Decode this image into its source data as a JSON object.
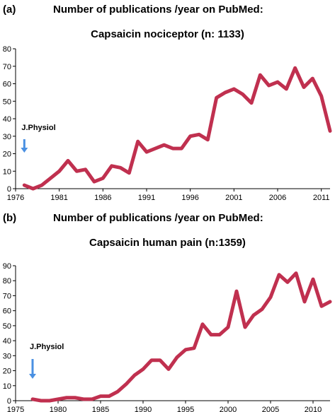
{
  "panels": [
    {
      "label": "(a)",
      "heading": "Number of publications /year on PubMed:",
      "title": "Capsaicin nociceptor (n: 1133)"
    },
    {
      "label": "(b)",
      "heading": "Number of publications /year on PubMed:",
      "title": "Capsaicin human pain (n:1359)"
    }
  ],
  "chart_data": [
    {
      "type": "line",
      "title": "Capsaicin nociceptor (n: 1133)",
      "xlabel": "",
      "ylabel": "",
      "xlim": [
        1976,
        2012
      ],
      "ylim": [
        0,
        80
      ],
      "xticks": [
        1976,
        1981,
        1986,
        1991,
        1996,
        2001,
        2006,
        2011
      ],
      "yticks": [
        0,
        10,
        20,
        30,
        40,
        50,
        60,
        70,
        80
      ],
      "grid": false,
      "line_color": "#c0304f",
      "annotation": {
        "text": "J.Physiol",
        "x": 1977,
        "arrow_color": "#4a90e2"
      },
      "series": [
        {
          "x": [
            1977,
            1978,
            1979,
            1980,
            1981,
            1982,
            1983,
            1984,
            1985,
            1986,
            1987,
            1988,
            1989,
            1990,
            1991,
            1992,
            1993,
            1994,
            1995,
            1996,
            1997,
            1998,
            1999,
            2000,
            2001,
            2002,
            2003,
            2004,
            2005,
            2006,
            2007,
            2008,
            2009,
            2010,
            2011,
            2012
          ],
          "values": [
            2,
            0,
            2,
            6,
            10,
            16,
            10,
            11,
            4,
            6,
            13,
            12,
            9,
            27,
            21,
            23,
            25,
            23,
            23,
            30,
            31,
            28,
            52,
            55,
            57,
            54,
            49,
            65,
            59,
            61,
            57,
            69,
            58,
            63,
            53,
            33
          ]
        }
      ]
    },
    {
      "type": "line",
      "title": "Capsaicin human pain (n:1359)",
      "xlabel": "",
      "ylabel": "",
      "xlim": [
        1975,
        2012
      ],
      "ylim": [
        0,
        90
      ],
      "xticks": [
        1975,
        1980,
        1985,
        1990,
        1995,
        2000,
        2005,
        2010
      ],
      "yticks": [
        0,
        10,
        20,
        30,
        40,
        50,
        60,
        70,
        80,
        90
      ],
      "grid": false,
      "line_color": "#c0304f",
      "annotation": {
        "text": "J.Physiol",
        "x": 1977,
        "arrow_color": "#4a90e2"
      },
      "series": [
        {
          "x": [
            1977,
            1978,
            1979,
            1980,
            1981,
            1982,
            1983,
            1984,
            1985,
            1986,
            1987,
            1988,
            1989,
            1990,
            1991,
            1992,
            1993,
            1994,
            1995,
            1996,
            1997,
            1998,
            1999,
            2000,
            2001,
            2002,
            2003,
            2004,
            2005,
            2006,
            2007,
            2008,
            2009,
            2010,
            2011,
            2012
          ],
          "values": [
            1,
            0,
            0,
            1,
            2,
            2,
            1,
            1,
            3,
            3,
            6,
            11,
            17,
            21,
            27,
            27,
            21,
            29,
            34,
            35,
            51,
            44,
            44,
            49,
            73,
            49,
            57,
            61,
            69,
            84,
            79,
            85,
            66,
            81,
            63,
            66
          ]
        }
      ]
    }
  ]
}
